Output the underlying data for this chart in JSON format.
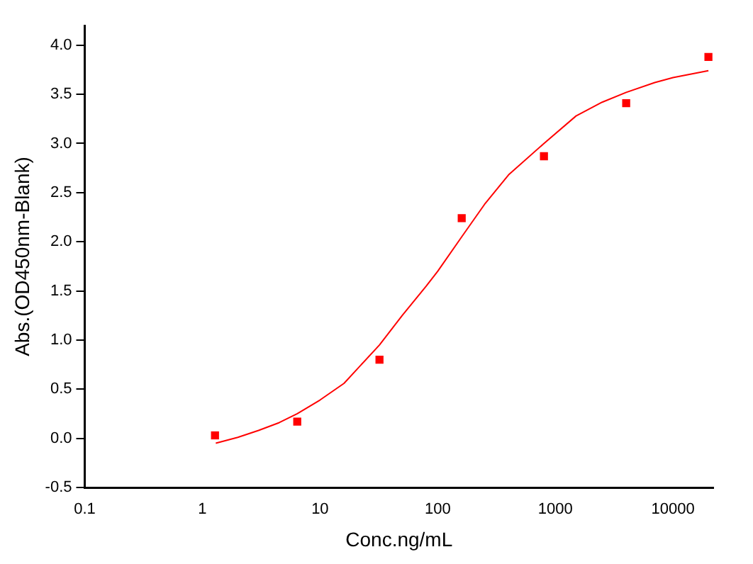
{
  "chart_data": {
    "type": "scatter",
    "xlabel": "Conc.ng/mL",
    "ylabel": "Abs.(OD450nm-Blank)",
    "log": "x",
    "grid": false,
    "legend": false,
    "xlim": [
      0.1,
      22000
    ],
    "xticks": [
      0.1,
      1,
      10,
      100,
      1000,
      10000
    ],
    "ylim": [
      -0.5,
      4.2
    ],
    "yticks": [
      {
        "value": -0.5,
        "label": "-0.5"
      },
      {
        "value": 0,
        "label": "0.0"
      },
      {
        "value": 0.5,
        "label": "0.5"
      },
      {
        "value": 1,
        "label": "1.0"
      },
      {
        "value": 1.5,
        "label": "1.5"
      },
      {
        "value": 2,
        "label": "2.0"
      },
      {
        "value": 2.5,
        "label": "2.5"
      },
      {
        "value": 3,
        "label": "3.0"
      },
      {
        "value": 3.5,
        "label": "3.5"
      },
      {
        "value": 4,
        "label": "4.0"
      }
    ],
    "series": [
      {
        "marker": "square",
        "color": "#ff0000",
        "x": [
          1.28,
          6.4,
          32,
          160,
          800,
          4000,
          20000
        ],
        "values": [
          0.03,
          0.17,
          0.8,
          2.24,
          2.87,
          3.41,
          3.88
        ]
      },
      {
        "type": "line",
        "marker": "none",
        "line_style": "solid",
        "color": "#ff0000",
        "x": [
          1.3,
          2,
          3,
          4.5,
          6.4,
          10,
          16,
          32,
          50,
          80,
          100,
          160,
          250,
          400,
          800,
          1500,
          2500,
          4000,
          7000,
          10000,
          20000
        ],
        "values": [
          -0.05,
          0.01,
          0.08,
          0.16,
          0.25,
          0.39,
          0.56,
          0.95,
          1.25,
          1.55,
          1.7,
          2.05,
          2.38,
          2.68,
          3.0,
          3.28,
          3.42,
          3.52,
          3.62,
          3.67,
          3.74
        ]
      }
    ]
  }
}
